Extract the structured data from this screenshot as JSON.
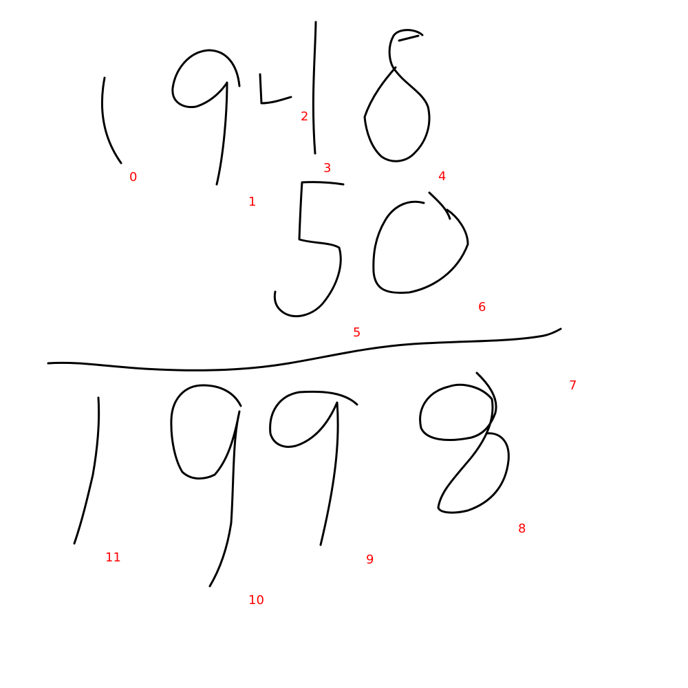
{
  "canvas": {
    "background": "#ffffff"
  },
  "ink_color": "#000000",
  "label_color": "#ff0000",
  "stroke_labels": [
    "0",
    "1",
    "2",
    "3",
    "4",
    "5",
    "6",
    "7",
    "8",
    "9",
    "10",
    "11"
  ]
}
